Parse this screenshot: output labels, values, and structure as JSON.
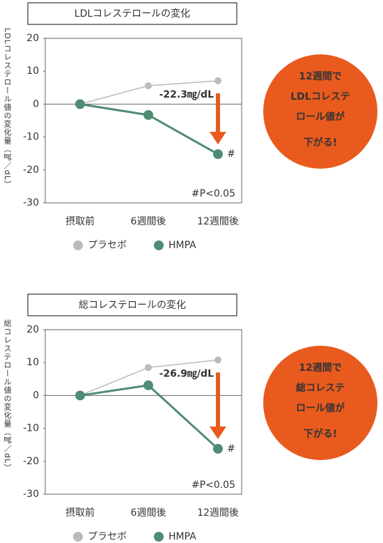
{
  "chart_data": [
    {
      "type": "line",
      "title": "LDLコレステロールの変化",
      "y_label": "LDLコレステロール値の変化量（㎎／dL）",
      "categories": [
        "摂取前",
        "6週間後",
        "12週間後"
      ],
      "series": [
        {
          "name": "プラセボ",
          "color": "#bbbbbb",
          "values": [
            0,
            5.6,
            7.1
          ]
        },
        {
          "name": "HMPA",
          "color": "#4e8c73",
          "values": [
            0,
            -3.3,
            -15.2
          ]
        }
      ],
      "ylim": [
        -30,
        20
      ],
      "yticks": [
        20,
        10,
        0,
        -10,
        -20,
        -30
      ],
      "annotation": "-22.3㎎/dL",
      "marker_label": "#",
      "note": "#P<0.05",
      "callout": [
        "12週間で",
        "LDLコレステ",
        "ロール値が",
        "下がる!"
      ]
    },
    {
      "type": "line",
      "title": "総コレステロールの変化",
      "y_label": "総コレステロール値の変化量（㎎／dL）",
      "categories": [
        "摂取前",
        "6週間後",
        "12週間後"
      ],
      "series": [
        {
          "name": "プラセボ",
          "color": "#bbbbbb",
          "values": [
            0,
            8.5,
            10.8
          ]
        },
        {
          "name": "HMPA",
          "color": "#4e8c73",
          "values": [
            0,
            3.1,
            -16.2
          ]
        }
      ],
      "ylim": [
        -30,
        20
      ],
      "yticks": [
        20,
        10,
        0,
        -10,
        -20,
        -30
      ],
      "annotation": "-26.9㎎/dL",
      "marker_label": "#",
      "note": "#P<0.05",
      "callout": [
        "12週間で",
        "総コレステ",
        "ロール値が",
        "下がる!"
      ]
    }
  ]
}
